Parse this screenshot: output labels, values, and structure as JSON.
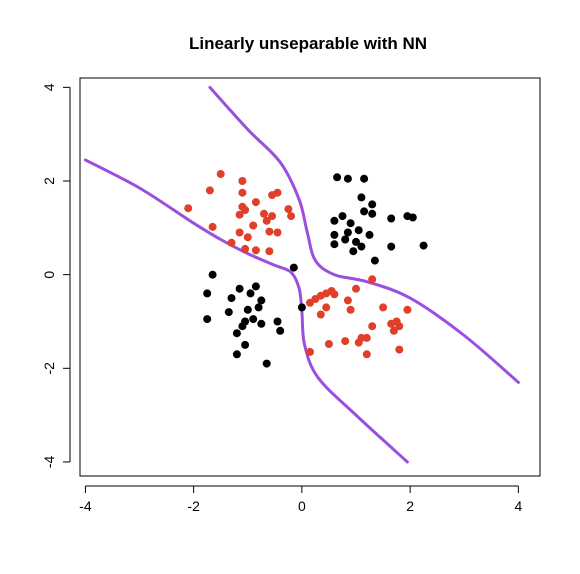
{
  "chart_data": {
    "type": "scatter",
    "title": "Linearly unseparable with NN",
    "xlabel": "",
    "ylabel": "",
    "xlim": [
      -4.1,
      4.4
    ],
    "ylim": [
      -4.3,
      4.2
    ],
    "x_ticks": [
      -4,
      -2,
      0,
      2,
      4
    ],
    "y_ticks": [
      -4,
      -2,
      0,
      2,
      4
    ],
    "x_tick_labels": [
      "-4",
      "-2",
      "0",
      "2",
      "4"
    ],
    "y_tick_labels": [
      "-4",
      "-2",
      "0",
      "2",
      "4"
    ],
    "grid": false,
    "colors": {
      "class_red": "#e0402a",
      "class_black": "#000000",
      "boundary": "#9b4fe0"
    },
    "series": [
      {
        "class": "red",
        "points": [
          [
            -1.5,
            2.15
          ],
          [
            -1.7,
            1.8
          ],
          [
            -1.1,
            2.0
          ],
          [
            -1.1,
            1.75
          ],
          [
            -0.85,
            1.55
          ],
          [
            -0.55,
            1.7
          ],
          [
            -0.45,
            1.75
          ],
          [
            -2.1,
            1.42
          ],
          [
            -1.1,
            1.45
          ],
          [
            -1.05,
            1.38
          ],
          [
            -1.15,
            1.28
          ],
          [
            -0.7,
            1.3
          ],
          [
            -0.65,
            1.15
          ],
          [
            -0.55,
            1.25
          ],
          [
            -0.25,
            1.4
          ],
          [
            -0.2,
            1.25
          ],
          [
            -1.65,
            1.02
          ],
          [
            -0.9,
            1.05
          ],
          [
            -0.6,
            0.92
          ],
          [
            -1.15,
            0.9
          ],
          [
            -1.0,
            0.8
          ],
          [
            -1.3,
            0.68
          ],
          [
            -1.05,
            0.55
          ],
          [
            -0.85,
            0.52
          ],
          [
            -0.6,
            0.5
          ],
          [
            -0.45,
            0.9
          ],
          [
            0.55,
            -0.35
          ],
          [
            0.45,
            -0.4
          ],
          [
            0.35,
            -0.45
          ],
          [
            0.25,
            -0.52
          ],
          [
            0.6,
            -0.42
          ],
          [
            0.85,
            -0.55
          ],
          [
            0.15,
            -0.6
          ],
          [
            0.45,
            -0.7
          ],
          [
            0.9,
            -0.75
          ],
          [
            1.5,
            -0.7
          ],
          [
            1.95,
            -0.75
          ],
          [
            0.35,
            -0.85
          ],
          [
            1.75,
            -1.0
          ],
          [
            1.65,
            -1.05
          ],
          [
            1.3,
            -1.1
          ],
          [
            1.8,
            -1.1
          ],
          [
            1.7,
            -1.2
          ],
          [
            1.2,
            -1.35
          ],
          [
            1.05,
            -1.45
          ],
          [
            0.8,
            -1.42
          ],
          [
            0.5,
            -1.48
          ],
          [
            1.1,
            -1.35
          ],
          [
            1.2,
            -1.7
          ],
          [
            1.8,
            -1.6
          ],
          [
            0.15,
            -1.65
          ],
          [
            1.3,
            -0.1
          ],
          [
            1.0,
            -0.3
          ]
        ]
      },
      {
        "class": "black",
        "points": [
          [
            0.65,
            2.08
          ],
          [
            0.85,
            2.05
          ],
          [
            1.15,
            2.05
          ],
          [
            1.1,
            1.65
          ],
          [
            1.3,
            1.5
          ],
          [
            1.15,
            1.35
          ],
          [
            0.75,
            1.25
          ],
          [
            0.6,
            1.15
          ],
          [
            0.9,
            1.1
          ],
          [
            1.3,
            1.3
          ],
          [
            1.65,
            1.2
          ],
          [
            1.95,
            1.25
          ],
          [
            2.05,
            1.22
          ],
          [
            0.85,
            0.9
          ],
          [
            1.05,
            0.95
          ],
          [
            1.25,
            0.85
          ],
          [
            0.6,
            0.85
          ],
          [
            0.8,
            0.75
          ],
          [
            1.0,
            0.7
          ],
          [
            1.1,
            0.6
          ],
          [
            0.6,
            0.65
          ],
          [
            0.95,
            0.5
          ],
          [
            1.65,
            0.6
          ],
          [
            2.25,
            0.62
          ],
          [
            1.35,
            0.3
          ],
          [
            -0.15,
            0.15
          ],
          [
            -1.65,
            0.0
          ],
          [
            -1.75,
            -0.4
          ],
          [
            -1.15,
            -0.3
          ],
          [
            -0.95,
            -0.4
          ],
          [
            -0.85,
            -0.25
          ],
          [
            -1.3,
            -0.5
          ],
          [
            -0.8,
            -0.7
          ],
          [
            -0.75,
            -0.55
          ],
          [
            -1.0,
            -0.75
          ],
          [
            -1.35,
            -0.8
          ],
          [
            -1.75,
            -0.95
          ],
          [
            -1.05,
            -1.0
          ],
          [
            -1.1,
            -1.1
          ],
          [
            -0.9,
            -0.95
          ],
          [
            -0.75,
            -1.05
          ],
          [
            -0.45,
            -1.0
          ],
          [
            -0.4,
            -1.2
          ],
          [
            -1.2,
            -1.25
          ],
          [
            -1.05,
            -1.5
          ],
          [
            -1.2,
            -1.7
          ],
          [
            -0.65,
            -1.9
          ],
          [
            0.0,
            -0.7
          ]
        ]
      }
    ],
    "boundaries": [
      [
        [
          -4.0,
          2.45
        ],
        [
          -3.0,
          1.85
        ],
        [
          -2.0,
          1.1
        ],
        [
          -1.5,
          0.75
        ],
        [
          -1.0,
          0.45
        ],
        [
          -0.5,
          0.2
        ],
        [
          -0.2,
          0.05
        ],
        [
          -0.05,
          -0.3
        ],
        [
          0.0,
          -0.8
        ],
        [
          0.05,
          -1.5
        ],
        [
          0.3,
          -2.2
        ],
        [
          1.0,
          -3.0
        ],
        [
          1.95,
          -4.0
        ]
      ],
      [
        [
          -1.7,
          4.0
        ],
        [
          -1.0,
          3.1
        ],
        [
          -0.4,
          2.4
        ],
        [
          -0.05,
          1.6
        ],
        [
          0.1,
          0.9
        ],
        [
          0.25,
          0.3
        ],
        [
          0.6,
          0.0
        ],
        [
          1.2,
          -0.15
        ],
        [
          2.0,
          -0.5
        ],
        [
          3.0,
          -1.3
        ],
        [
          4.0,
          -2.3
        ]
      ]
    ]
  }
}
